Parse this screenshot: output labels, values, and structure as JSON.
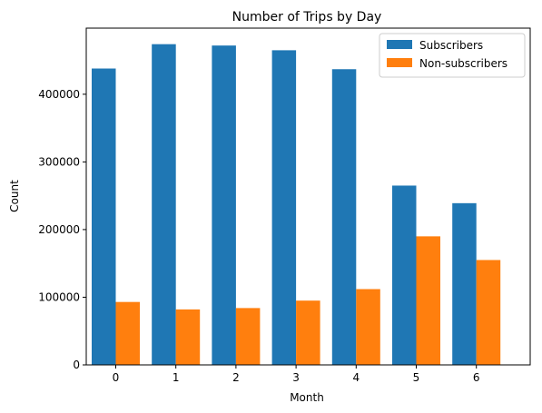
{
  "chart_data": {
    "type": "bar",
    "title": "Number of Trips by Day",
    "xlabel": "Month",
    "ylabel": "Count",
    "categories": [
      "0",
      "1",
      "2",
      "3",
      "4",
      "5",
      "6"
    ],
    "series": [
      {
        "name": "Subscribers",
        "color": "#1f77b4",
        "values": [
          438000,
          474000,
          472000,
          465000,
          437000,
          265000,
          239000
        ]
      },
      {
        "name": "Non-subscribers",
        "color": "#ff7f0e",
        "values": [
          93000,
          82000,
          84000,
          95000,
          112000,
          190000,
          155000
        ]
      }
    ],
    "yticks": [
      0,
      100000,
      200000,
      300000,
      400000
    ],
    "ytick_labels": [
      "0",
      "100000",
      "200000",
      "300000",
      "400000"
    ],
    "ylim": [
      0,
      497700
    ],
    "grid": false,
    "legend_position": "top-right"
  }
}
